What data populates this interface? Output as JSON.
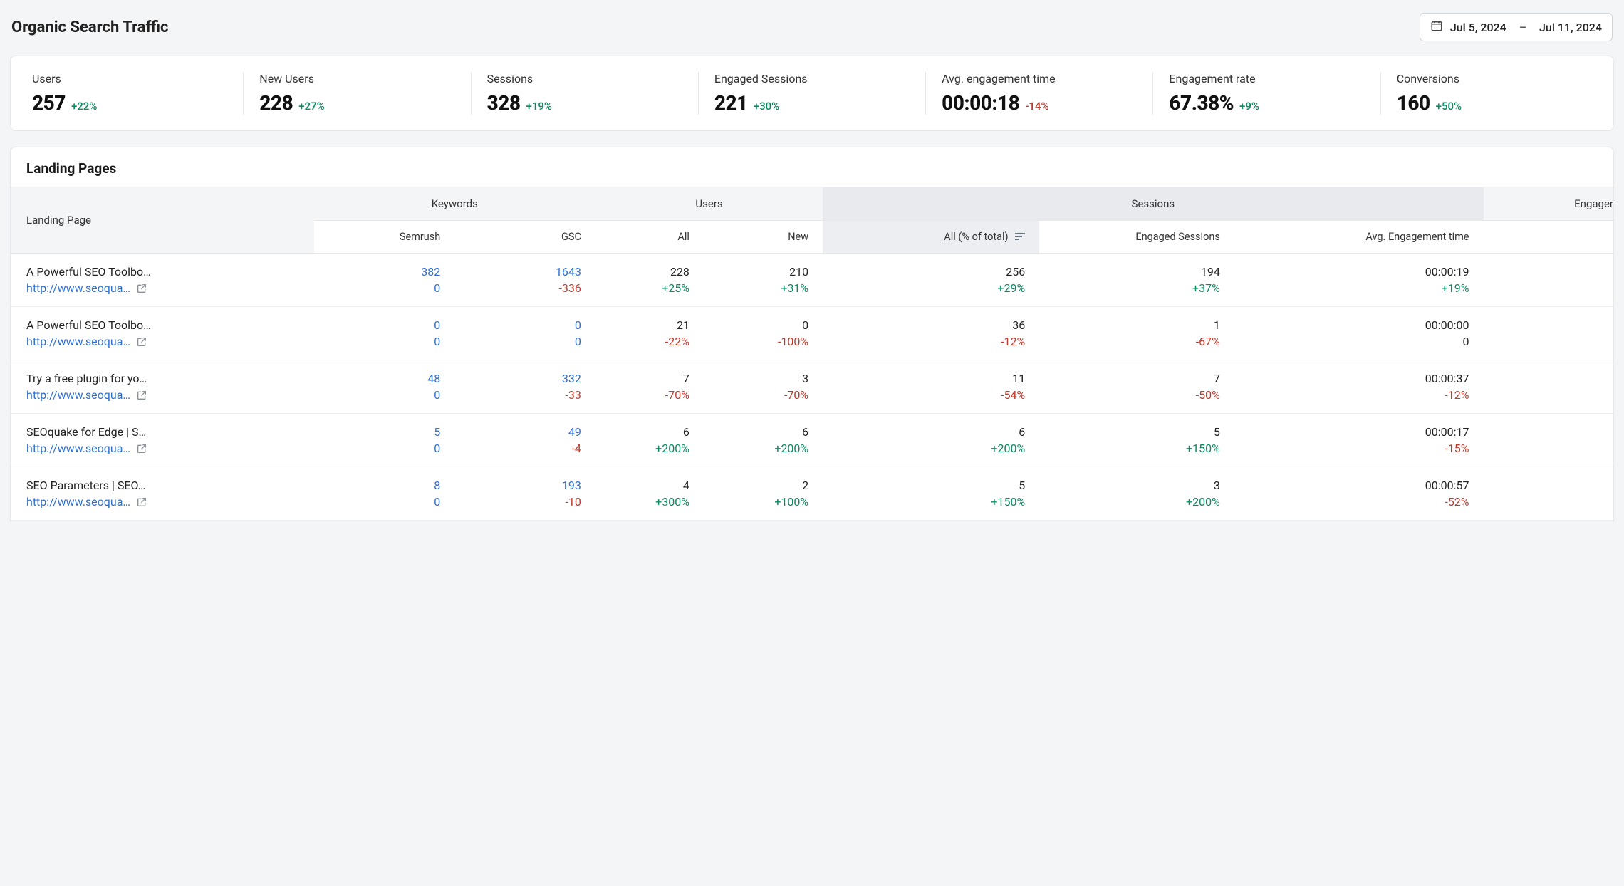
{
  "header": {
    "title": "Organic Search Traffic",
    "date_start": "Jul 5, 2024",
    "date_sep": "–",
    "date_end": "Jul 11, 2024"
  },
  "kpis": [
    {
      "label": "Users",
      "value": "257",
      "delta": "+22%",
      "dir": "pos"
    },
    {
      "label": "New Users",
      "value": "228",
      "delta": "+27%",
      "dir": "pos"
    },
    {
      "label": "Sessions",
      "value": "328",
      "delta": "+19%",
      "dir": "pos"
    },
    {
      "label": "Engaged Sessions",
      "value": "221",
      "delta": "+30%",
      "dir": "pos"
    },
    {
      "label": "Avg. engagement time",
      "value": "00:00:18",
      "delta": "-14%",
      "dir": "neg"
    },
    {
      "label": "Engagement rate",
      "value": "67.38%",
      "delta": "+9%",
      "dir": "pos"
    },
    {
      "label": "Conversions",
      "value": "160",
      "delta": "+50%",
      "dir": "pos"
    }
  ],
  "table": {
    "title": "Landing Pages",
    "groupHeaders": {
      "lp": "Landing Page",
      "keywords": "Keywords",
      "users": "Users",
      "sessions": "Sessions",
      "engagement": "Engager"
    },
    "subHeaders": {
      "semrush": "Semrush",
      "gsc": "GSC",
      "all_users": "All",
      "new_users": "New",
      "all_sessions": "All (% of total)",
      "engaged": "Engaged Sessions",
      "avg_time": "Avg. Engagement time"
    },
    "rows": [
      {
        "title": "A Powerful SEO Toolbo…",
        "url": "http://www.seoqua…",
        "semrush": {
          "v": "382",
          "s": "0",
          "vlink": true,
          "slink": true
        },
        "gsc": {
          "v": "1643",
          "s": "-336",
          "vlink": true,
          "sdir": "neg"
        },
        "all_users": {
          "v": "228",
          "s": "+25%",
          "sdir": "pos"
        },
        "new_users": {
          "v": "210",
          "s": "+31%",
          "sdir": "pos"
        },
        "all_sessions": {
          "v": "256",
          "s": "+29%",
          "sdir": "pos"
        },
        "engaged": {
          "v": "194",
          "s": "+37%",
          "sdir": "pos"
        },
        "avg_time": {
          "v": "00:00:19",
          "s": "+19%",
          "sdir": "pos"
        }
      },
      {
        "title": "A Powerful SEO Toolbo…",
        "url": "http://www.seoqua…",
        "semrush": {
          "v": "0",
          "s": "0",
          "vlink": true,
          "slink": true
        },
        "gsc": {
          "v": "0",
          "s": "0",
          "vlink": true,
          "slink": true
        },
        "all_users": {
          "v": "21",
          "s": "-22%",
          "sdir": "neg"
        },
        "new_users": {
          "v": "0",
          "s": "-100%",
          "sdir": "neg"
        },
        "all_sessions": {
          "v": "36",
          "s": "-12%",
          "sdir": "neg"
        },
        "engaged": {
          "v": "1",
          "s": "-67%",
          "sdir": "neg"
        },
        "avg_time": {
          "v": "00:00:00",
          "s": "0",
          "sdir": "plain"
        }
      },
      {
        "title": "Try a free plugin for yo…",
        "url": "http://www.seoqua…",
        "semrush": {
          "v": "48",
          "s": "0",
          "vlink": true,
          "slink": true
        },
        "gsc": {
          "v": "332",
          "s": "-33",
          "vlink": true,
          "sdir": "neg"
        },
        "all_users": {
          "v": "7",
          "s": "-70%",
          "sdir": "neg"
        },
        "new_users": {
          "v": "3",
          "s": "-70%",
          "sdir": "neg"
        },
        "all_sessions": {
          "v": "11",
          "s": "-54%",
          "sdir": "neg"
        },
        "engaged": {
          "v": "7",
          "s": "-50%",
          "sdir": "neg"
        },
        "avg_time": {
          "v": "00:00:37",
          "s": "-12%",
          "sdir": "neg"
        }
      },
      {
        "title": "SEOquake for Edge | S…",
        "url": "http://www.seoqua…",
        "semrush": {
          "v": "5",
          "s": "0",
          "vlink": true,
          "slink": true
        },
        "gsc": {
          "v": "49",
          "s": "-4",
          "vlink": true,
          "sdir": "neg"
        },
        "all_users": {
          "v": "6",
          "s": "+200%",
          "sdir": "pos"
        },
        "new_users": {
          "v": "6",
          "s": "+200%",
          "sdir": "pos"
        },
        "all_sessions": {
          "v": "6",
          "s": "+200%",
          "sdir": "pos"
        },
        "engaged": {
          "v": "5",
          "s": "+150%",
          "sdir": "pos"
        },
        "avg_time": {
          "v": "00:00:17",
          "s": "-15%",
          "sdir": "neg"
        }
      },
      {
        "title": "SEO Parameters | SEO…",
        "url": "http://www.seoqua…",
        "semrush": {
          "v": "8",
          "s": "0",
          "vlink": true,
          "slink": true
        },
        "gsc": {
          "v": "193",
          "s": "-10",
          "vlink": true,
          "sdir": "neg"
        },
        "all_users": {
          "v": "4",
          "s": "+300%",
          "sdir": "pos"
        },
        "new_users": {
          "v": "2",
          "s": "+100%",
          "sdir": "pos"
        },
        "all_sessions": {
          "v": "5",
          "s": "+150%",
          "sdir": "pos"
        },
        "engaged": {
          "v": "3",
          "s": "+200%",
          "sdir": "pos"
        },
        "avg_time": {
          "v": "00:00:57",
          "s": "-52%",
          "sdir": "neg"
        }
      }
    ]
  },
  "colors": {
    "pos": "#0a8a5f",
    "neg": "#c0392b",
    "link": "#2f6fd0",
    "bg": "#f4f5f7",
    "border": "#e5e7eb"
  }
}
